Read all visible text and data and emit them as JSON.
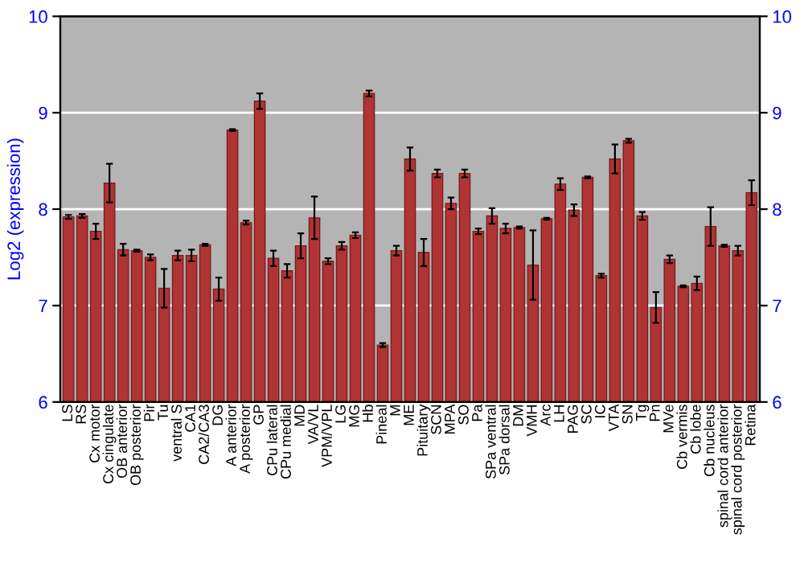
{
  "chart_data": {
    "type": "bar",
    "ylabel": "Log2 (expression)",
    "categories": [
      "LS",
      "RS",
      "Cx motor",
      "Cx cingulate",
      "OB anterior",
      "OB posterior",
      "Pir",
      "Tu",
      "ventral S",
      "CA1",
      "CA2/CA3",
      "DG",
      "A anterior",
      "A posterior",
      "GP",
      "CPu lateral",
      "CPu medial",
      "MD",
      "VA/VL",
      "VPM/VPL",
      "LG",
      "MG",
      "Hb",
      "Pineal",
      "M",
      "ME",
      "Pituitary",
      "SCN",
      "MPA",
      "SO",
      "Pa",
      "SPa ventral",
      "SPa dorsal",
      "DM",
      "VMH",
      "Arc",
      "LH",
      "PAG",
      "SC",
      "IC",
      "VTA",
      "SN",
      "Tg",
      "Pn",
      "MVe",
      "Cb vermis",
      "Cb lobe",
      "Cb nucleus",
      "spinal cord anterior",
      "spinal cord posterior",
      "Retina"
    ],
    "values": [
      7.92,
      7.93,
      7.77,
      8.27,
      7.58,
      7.57,
      7.5,
      7.18,
      7.52,
      7.52,
      7.63,
      7.17,
      8.82,
      7.86,
      9.12,
      7.49,
      7.36,
      7.62,
      7.91,
      7.46,
      7.62,
      7.73,
      9.2,
      6.59,
      7.57,
      8.52,
      7.55,
      8.37,
      8.06,
      8.37,
      7.77,
      7.93,
      7.8,
      7.81,
      7.42,
      7.9,
      8.26,
      7.99,
      8.33,
      7.31,
      8.52,
      8.71,
      7.93,
      6.98,
      7.48,
      7.2,
      7.23,
      7.82,
      7.62,
      7.57,
      8.17
    ],
    "errors": [
      0.02,
      0.02,
      0.08,
      0.2,
      0.06,
      0.01,
      0.03,
      0.2,
      0.05,
      0.06,
      0.01,
      0.12,
      0.01,
      0.02,
      0.08,
      0.08,
      0.07,
      0.13,
      0.22,
      0.03,
      0.04,
      0.03,
      0.03,
      0.02,
      0.05,
      0.12,
      0.14,
      0.04,
      0.06,
      0.04,
      0.03,
      0.08,
      0.05,
      0.01,
      0.36,
      0.01,
      0.06,
      0.06,
      0.01,
      0.02,
      0.15,
      0.02,
      0.04,
      0.16,
      0.04,
      0.01,
      0.07,
      0.2,
      0.01,
      0.05,
      0.13
    ],
    "color": "#b03434",
    "ylim": [
      6,
      10
    ],
    "yticks": [
      6,
      7,
      8,
      9,
      10
    ],
    "y2lim": [
      6,
      10
    ],
    "y2ticks": [
      6,
      7,
      8,
      9,
      10
    ],
    "grid": "y",
    "legend": false
  }
}
